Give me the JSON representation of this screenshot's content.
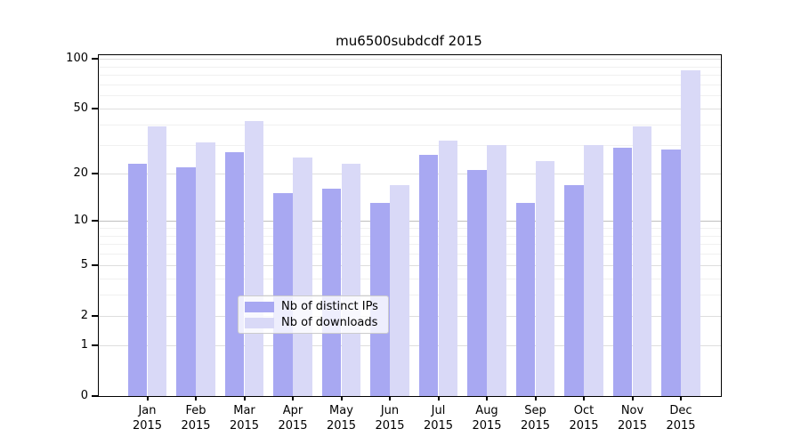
{
  "title": "mu6500subdcdf 2015",
  "chart_data": {
    "type": "bar",
    "title": "mu6500subdcdf 2015",
    "categories": [
      "Jan",
      "Feb",
      "Mar",
      "Apr",
      "May",
      "Jun",
      "Jul",
      "Aug",
      "Sep",
      "Oct",
      "Nov",
      "Dec"
    ],
    "year_label": "2015",
    "series": [
      {
        "name": "Nb of distinct IPs",
        "color": "#a8a8f2",
        "values": [
          23,
          22,
          27,
          15,
          16,
          13,
          26,
          21,
          13,
          17,
          29,
          28
        ]
      },
      {
        "name": "Nb of downloads",
        "color": "#d9d9f7",
        "values": [
          39,
          31,
          42,
          25,
          23,
          17,
          32,
          30,
          24,
          30,
          39,
          85
        ]
      }
    ],
    "yscale": "log1p",
    "ylim": [
      0,
      105
    ],
    "y_major_ticks": [
      0,
      1,
      2,
      5,
      10,
      20,
      50,
      100
    ],
    "y_minor_ticks": [
      3,
      4,
      6,
      7,
      8,
      9,
      30,
      40,
      60,
      70,
      80,
      90
    ],
    "xlabel": "",
    "ylabel": "",
    "grid": true,
    "legend_position": "lower center"
  },
  "legend": {
    "items": [
      {
        "label": "Nb of distinct IPs",
        "color": "#a8a8f2"
      },
      {
        "label": "Nb of downloads",
        "color": "#d9d9f7"
      }
    ]
  },
  "colors": {
    "bar_distinct_ips": "#a8a8f2",
    "bar_downloads": "#d9d9f7",
    "grid_minor": "#f0f0f0",
    "grid_major": "#dedede",
    "grid_decade": "#bfbfbf",
    "axis": "#000000",
    "legend_border": "#cccccc"
  }
}
